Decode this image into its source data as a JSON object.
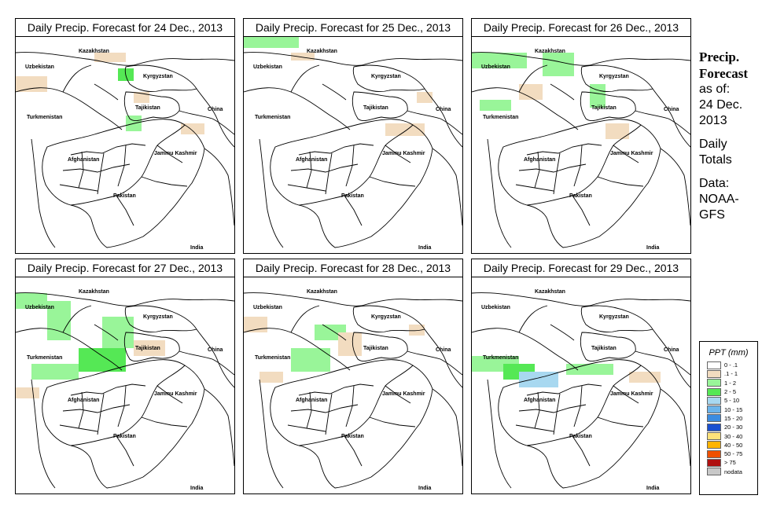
{
  "panels": [
    {
      "title": "Daily Precip. Forecast for  24 Dec., 2013"
    },
    {
      "title": "Daily Precip. Forecast for  25 Dec., 2013"
    },
    {
      "title": "Daily Precip. Forecast for  26 Dec., 2013"
    },
    {
      "title": "Daily Precip. Forecast for  27 Dec., 2013"
    },
    {
      "title": "Daily Precip. Forecast for  28 Dec., 2013"
    },
    {
      "title": "Daily Precip. Forecast for  29 Dec., 2013"
    }
  ],
  "map_labels": {
    "kazakhstan": "Kazakhstan",
    "uzbekistan": "Uzbekistan",
    "kyrgyzstan": "Kyrgyzstan",
    "tajikistan": "Tajikistan",
    "turkmenistan": "Turkmenistan",
    "china": "China",
    "jammu_kashmir": "Jammu Kashmir",
    "afghanistan": "Afghanistan",
    "pakistan": "Pakistan",
    "india": "India"
  },
  "side_text": {
    "title_line1": "Precip.",
    "title_line2": "Forecast",
    "as_of": "as of:",
    "date_line1": "24 Dec.",
    "date_line2": "2013",
    "daily_line1": "Daily",
    "daily_line2": "Totals",
    "data_line1": "Data:",
    "data_line2": "NOAA-",
    "data_line3": "GFS"
  },
  "legend": {
    "title": "PPT (mm)",
    "items": [
      {
        "label": "0 - .1",
        "color": "#ffffff"
      },
      {
        "label": ".1 - 1",
        "color": "#f2dcc0"
      },
      {
        "label": "1 - 2",
        "color": "#99f599"
      },
      {
        "label": "2 - 5",
        "color": "#55e855"
      },
      {
        "label": "5 - 10",
        "color": "#a8d8f0"
      },
      {
        "label": "10 - 15",
        "color": "#6cb4ea"
      },
      {
        "label": "15 - 20",
        "color": "#3c8ce0"
      },
      {
        "label": "20 - 30",
        "color": "#1a50d0"
      },
      {
        "label": "30 - 40",
        "color": "#ffe27a"
      },
      {
        "label": "40 - 50",
        "color": "#ffb400"
      },
      {
        "label": "50 - 75",
        "color": "#f05000"
      },
      {
        "label": "> 75",
        "color": "#b01010"
      },
      {
        "label": "nodata",
        "color": "#c8c8c8"
      }
    ]
  }
}
